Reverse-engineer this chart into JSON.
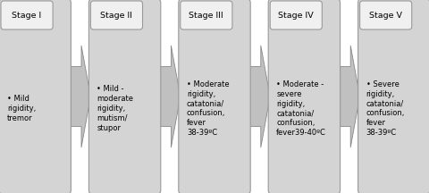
{
  "stages": [
    {
      "title": "Stage I",
      "lines": [
        "• Mild\nrigidity,\ntremor"
      ]
    },
    {
      "title": "Stage II",
      "lines": [
        "• Mild -\nmoderate\nrigidity,\nmutism/\nstupor"
      ]
    },
    {
      "title": "Stage III",
      "lines": [
        "• Moderate\nrigidity,\ncatatonia/\nconfusion,\nfever\n38-39ºC"
      ]
    },
    {
      "title": "Stage IV",
      "lines": [
        "• Moderate -\nsevere\nrigidity,\ncatatonia/\nconfusion,\nfever39-40ºC"
      ]
    },
    {
      "title": "Stage V",
      "lines": [
        "• Severe\nrigidity,\ncatatonia/\nconfusion,\nfever\n38-39ºC"
      ]
    }
  ],
  "box_facecolor": "#d4d4d4",
  "box_edgecolor": "#999999",
  "title_facecolor": "#f0f0f0",
  "title_edgecolor": "#999999",
  "arrow_facecolor": "#c0c0c0",
  "arrow_edgecolor": "#888888",
  "background_color": "#ffffff",
  "title_fontsize": 6.8,
  "body_fontsize": 6.0,
  "n_stages": 5,
  "fig_width": 4.8,
  "fig_height": 2.16,
  "dpi": 100
}
